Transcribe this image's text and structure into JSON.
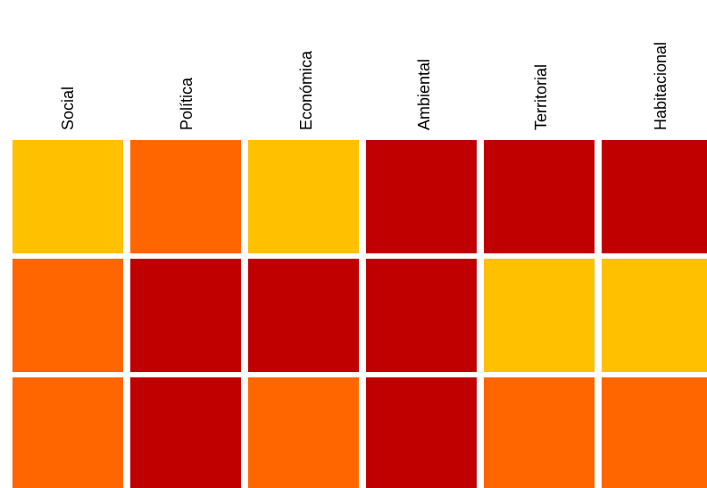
{
  "chart_data": {
    "type": "heatmap",
    "columns": [
      "Social",
      "Política",
      "Económica",
      "Ambiental",
      "Territorial",
      "Habitacional"
    ],
    "rows": [
      [
        "medium",
        "high",
        "medium",
        "very-high",
        "very-high",
        "very-high"
      ],
      [
        "high",
        "very-high",
        "very-high",
        "very-high",
        "medium",
        "medium"
      ],
      [
        "high",
        "very-high",
        "high",
        "very-high",
        "high",
        "high"
      ]
    ],
    "level_colors": {
      "medium": "#FFC000",
      "high": "#FF6600",
      "very-high": "#C00000"
    },
    "legend": "none",
    "grid": false
  }
}
